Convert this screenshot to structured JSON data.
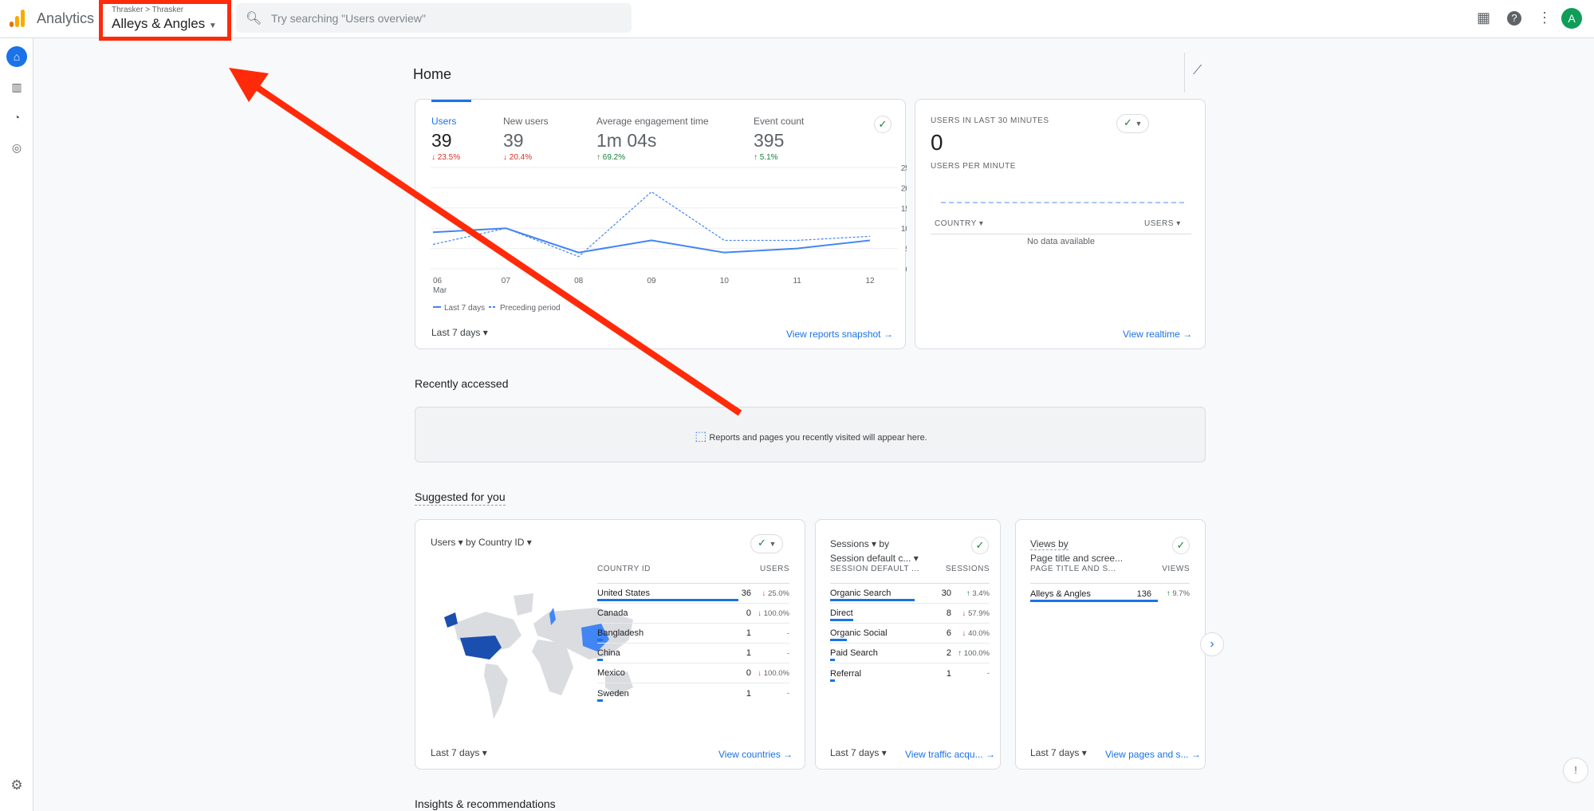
{
  "topbar": {
    "app_name": "Analytics",
    "breadcrumb": "Thrasker > Thrasker",
    "property": "Alleys & Angles",
    "search_placeholder": "Try searching \"Users overview\"",
    "avatar_letter": "A"
  },
  "home": {
    "title": "Home"
  },
  "overview": {
    "metrics": [
      {
        "label": "Users",
        "value": "39",
        "change": "23.5%",
        "dir": "down"
      },
      {
        "label": "New users",
        "value": "39",
        "change": "20.4%",
        "dir": "down"
      },
      {
        "label": "Average engagement time",
        "value": "1m 04s",
        "change": "69.2%",
        "dir": "up"
      },
      {
        "label": "Event count",
        "value": "395",
        "change": "5.1%",
        "dir": "up"
      }
    ],
    "date_range": "Last 7 days",
    "link": "View reports snapshot"
  },
  "chart_data": {
    "type": "line",
    "x": [
      "06",
      "07",
      "08",
      "09",
      "10",
      "11",
      "12"
    ],
    "x_sub": "Mar",
    "yticks": [
      "25",
      "20",
      "15",
      "10",
      "5",
      "0"
    ],
    "ylim": [
      0,
      25
    ],
    "series": [
      {
        "name": "Last 7 days",
        "values": [
          9,
          10,
          4,
          7,
          4,
          5,
          7
        ],
        "color": "#4285f4"
      },
      {
        "name": "Preceding period",
        "values": [
          6,
          10,
          3,
          19,
          7,
          7,
          8
        ],
        "color": "#4285f4",
        "dashed": true
      }
    ]
  },
  "realtime": {
    "title": "USERS IN LAST 30 MINUTES",
    "value": "0",
    "subtitle": "USERS PER MINUTE",
    "col1": "COUNTRY",
    "col2": "USERS",
    "empty": "No data available",
    "link": "View realtime"
  },
  "recent": {
    "title": "Recently accessed",
    "empty": "Reports and pages you recently visited will appear here."
  },
  "suggested": {
    "title": "Suggested for you",
    "countries": {
      "metric": "Users",
      "dim": "by Country ID",
      "col1": "COUNTRY ID",
      "col2": "USERS",
      "rows": [
        {
          "name": "United States",
          "value": "36",
          "change": "25.0%",
          "dir": "down",
          "share": 0.92
        },
        {
          "name": "Canada",
          "value": "0",
          "change": "100.0%",
          "dir": "down",
          "share": 0
        },
        {
          "name": "Bangladesh",
          "value": "1",
          "change": "-",
          "dir": "none",
          "share": 0.03
        },
        {
          "name": "China",
          "value": "1",
          "change": "-",
          "dir": "none",
          "share": 0.03
        },
        {
          "name": "Mexico",
          "value": "0",
          "change": "100.0%",
          "dir": "down",
          "share": 0
        },
        {
          "name": "Sweden",
          "value": "1",
          "change": "-",
          "dir": "none",
          "share": 0.03
        }
      ],
      "date_range": "Last 7 days",
      "link": "View countries"
    },
    "sessions": {
      "metric": "Sessions",
      "by": "by",
      "dim": "Session default c...",
      "col1": "SESSION DEFAULT ...",
      "col2": "SESSIONS",
      "rows": [
        {
          "name": "Organic Search",
          "value": "30",
          "change": "3.4%",
          "dir": "up",
          "share": 0.66
        },
        {
          "name": "Direct",
          "value": "8",
          "change": "57.9%",
          "dir": "down",
          "share": 0.18
        },
        {
          "name": "Organic Social",
          "value": "6",
          "change": "40.0%",
          "dir": "down",
          "share": 0.13
        },
        {
          "name": "Paid Search",
          "value": "2",
          "change": "100.0%",
          "dir": "up",
          "share": 0.04
        },
        {
          "name": "Referral",
          "value": "1",
          "change": "-",
          "dir": "none",
          "share": 0.02
        }
      ],
      "date_range": "Last 7 days",
      "link": "View traffic acqu..."
    },
    "pages": {
      "metric": "Views by",
      "dim": "Page title and scree...",
      "col1": "PAGE TITLE AND S...",
      "col2": "VIEWS",
      "rows": [
        {
          "name": "Alleys & Angles",
          "value": "136",
          "change": "9.7%",
          "dir": "up",
          "share": 1
        }
      ],
      "date_range": "Last 7 days",
      "link": "View pages and s..."
    }
  },
  "insights": {
    "title": "Insights & recommendations"
  }
}
